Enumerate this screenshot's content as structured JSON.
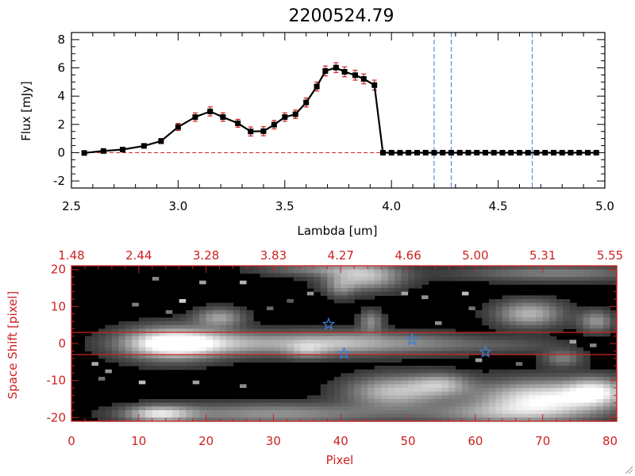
{
  "colors": {
    "sed_line": "#000000",
    "sed_marker": "#000000",
    "error_bar": "#cc2222",
    "zero_line": "#cc2222",
    "vline": "#3a7fd5",
    "image_axes": "#cc2222",
    "trace_lines": "#cc2222",
    "star_marker": "#3a7fd5"
  },
  "chart_data": [
    {
      "type": "line",
      "id": "sed",
      "title": "2200524.79",
      "xlabel": "Lambda [um]",
      "ylabel": "Flux [mJy]",
      "xlim": [
        2.5,
        5.0
      ],
      "ylim": [
        -2.5,
        8.5
      ],
      "xticks": [
        2.5,
        3.0,
        3.5,
        4.0,
        4.5,
        5.0
      ],
      "xticklabels": [
        "2.5",
        "3.0",
        "3.5",
        "4.0",
        "4.5",
        "5.0"
      ],
      "yticks": [
        -2,
        0,
        2,
        4,
        6,
        8
      ],
      "yticklabels": [
        "-2",
        "0",
        "2",
        "4",
        "6",
        "8"
      ],
      "x": [
        2.56,
        2.65,
        2.74,
        2.84,
        2.92,
        3.0,
        3.08,
        3.15,
        3.21,
        3.28,
        3.34,
        3.4,
        3.45,
        3.5,
        3.55,
        3.6,
        3.65,
        3.69,
        3.74,
        3.78,
        3.83,
        3.87,
        3.92,
        3.96,
        4.0,
        4.04,
        4.08,
        4.12,
        4.16,
        4.2,
        4.24,
        4.28,
        4.32,
        4.36,
        4.4,
        4.44,
        4.48,
        4.52,
        4.56,
        4.6,
        4.64,
        4.68,
        4.72,
        4.76,
        4.8,
        4.84,
        4.88,
        4.92,
        4.96
      ],
      "y": [
        -0.02,
        0.12,
        0.22,
        0.48,
        0.82,
        1.82,
        2.52,
        2.92,
        2.52,
        2.08,
        1.5,
        1.52,
        1.98,
        2.52,
        2.72,
        3.55,
        4.68,
        5.78,
        6.02,
        5.72,
        5.48,
        5.22,
        4.78,
        0.0,
        0.0,
        0.0,
        0.0,
        0.0,
        0.0,
        0.0,
        0.0,
        0.0,
        0.0,
        0.0,
        0.0,
        0.0,
        0.0,
        0.0,
        0.0,
        0.0,
        0.0,
        0.0,
        0.0,
        0.0,
        0.0,
        0.0,
        0.0,
        0.0,
        0.0
      ],
      "yerr": [
        0.1,
        0.1,
        0.12,
        0.15,
        0.18,
        0.25,
        0.3,
        0.32,
        0.3,
        0.28,
        0.32,
        0.32,
        0.3,
        0.3,
        0.3,
        0.32,
        0.32,
        0.35,
        0.35,
        0.35,
        0.35,
        0.35,
        0.35,
        0,
        0,
        0,
        0,
        0,
        0,
        0,
        0,
        0,
        0,
        0,
        0,
        0,
        0,
        0,
        0,
        0,
        0,
        0,
        0,
        0,
        0,
        0,
        0,
        0,
        0
      ],
      "zero_line": 0,
      "vlines": [
        4.2,
        4.28,
        4.66
      ]
    },
    {
      "type": "heatmap",
      "id": "spectral_image",
      "xlabel": "Pixel",
      "ylabel": "Space Shift [pixel]",
      "xlim": [
        0,
        81
      ],
      "ylim": [
        -21,
        21
      ],
      "xticks": [
        0,
        10,
        20,
        30,
        40,
        50,
        60,
        70,
        80
      ],
      "xticklabels": [
        "0",
        "10",
        "20",
        "30",
        "40",
        "50",
        "60",
        "70",
        "80"
      ],
      "yticks": [
        -20,
        -10,
        0,
        10,
        20
      ],
      "yticklabels": [
        "-20",
        "-10",
        "0",
        "10",
        "20"
      ],
      "top_axis_ticklabels": [
        "1.48",
        "2.44",
        "3.28",
        "3.83",
        "4.27",
        "4.66",
        "5.00",
        "5.31",
        "5.55"
      ],
      "trace_lines": [
        3,
        -3
      ],
      "stars": [
        {
          "x": 38.2,
          "y": 5.2
        },
        {
          "x": 40.5,
          "y": -2.7
        },
        {
          "x": 50.6,
          "y": 1.0
        },
        {
          "x": 61.5,
          "y": -2.3
        }
      ],
      "sources": [
        {
          "x": 15,
          "y": 0,
          "sx": 5,
          "sy": 3,
          "a": 1.0
        },
        {
          "x": 25,
          "y": 0,
          "sx": 10,
          "sy": 2.2,
          "a": 0.55
        },
        {
          "x": 40,
          "y": 0,
          "sx": 6,
          "sy": 2.2,
          "a": 0.5
        },
        {
          "x": 52,
          "y": 0,
          "sx": 6,
          "sy": 2,
          "a": 0.35
        },
        {
          "x": 65,
          "y": -0.5,
          "sx": 6,
          "sy": 1.5,
          "a": 0.2
        },
        {
          "x": 43.5,
          "y": 18,
          "sx": 4,
          "sy": 2.5,
          "a": 0.7
        },
        {
          "x": 40,
          "y": 15,
          "sx": 1.5,
          "sy": 2,
          "a": 0.3
        },
        {
          "x": 22,
          "y": 7,
          "sx": 2.5,
          "sy": 1.8,
          "a": 0.55
        },
        {
          "x": 68,
          "y": 8,
          "sx": 3.5,
          "sy": 2.5,
          "a": 0.65
        },
        {
          "x": 78,
          "y": 6,
          "sx": 1.8,
          "sy": 2,
          "a": 0.5
        },
        {
          "x": 44.5,
          "y": 6,
          "sx": 1.2,
          "sy": 2,
          "a": 0.45
        },
        {
          "x": 48,
          "y": -13,
          "sx": 5,
          "sy": 3,
          "a": 0.7
        },
        {
          "x": 55,
          "y": -11,
          "sx": 3,
          "sy": 2,
          "a": 0.5
        },
        {
          "x": 70,
          "y": -15,
          "sx": 7,
          "sy": 3.5,
          "a": 0.95
        },
        {
          "x": 78,
          "y": -13,
          "sx": 3,
          "sy": 2.5,
          "a": 0.7
        },
        {
          "x": 30,
          "y": -19,
          "sx": 12,
          "sy": 2,
          "a": 0.5
        },
        {
          "x": 13,
          "y": -19,
          "sx": 3.5,
          "sy": 1.5,
          "a": 0.75
        },
        {
          "x": 63,
          "y": -19,
          "sx": 8,
          "sy": 2,
          "a": 0.4
        },
        {
          "x": 72,
          "y": 19,
          "sx": 10,
          "sy": 1.5,
          "a": 0.4
        },
        {
          "x": 36,
          "y": 20,
          "sx": 6,
          "sy": 1.2,
          "a": 0.35
        },
        {
          "x": 73,
          "y": -4,
          "sx": 2,
          "sy": 1.5,
          "a": 0.4
        },
        {
          "x": 35,
          "y": -2,
          "sx": 2,
          "sy": 1.5,
          "a": 0.3
        }
      ]
    }
  ]
}
